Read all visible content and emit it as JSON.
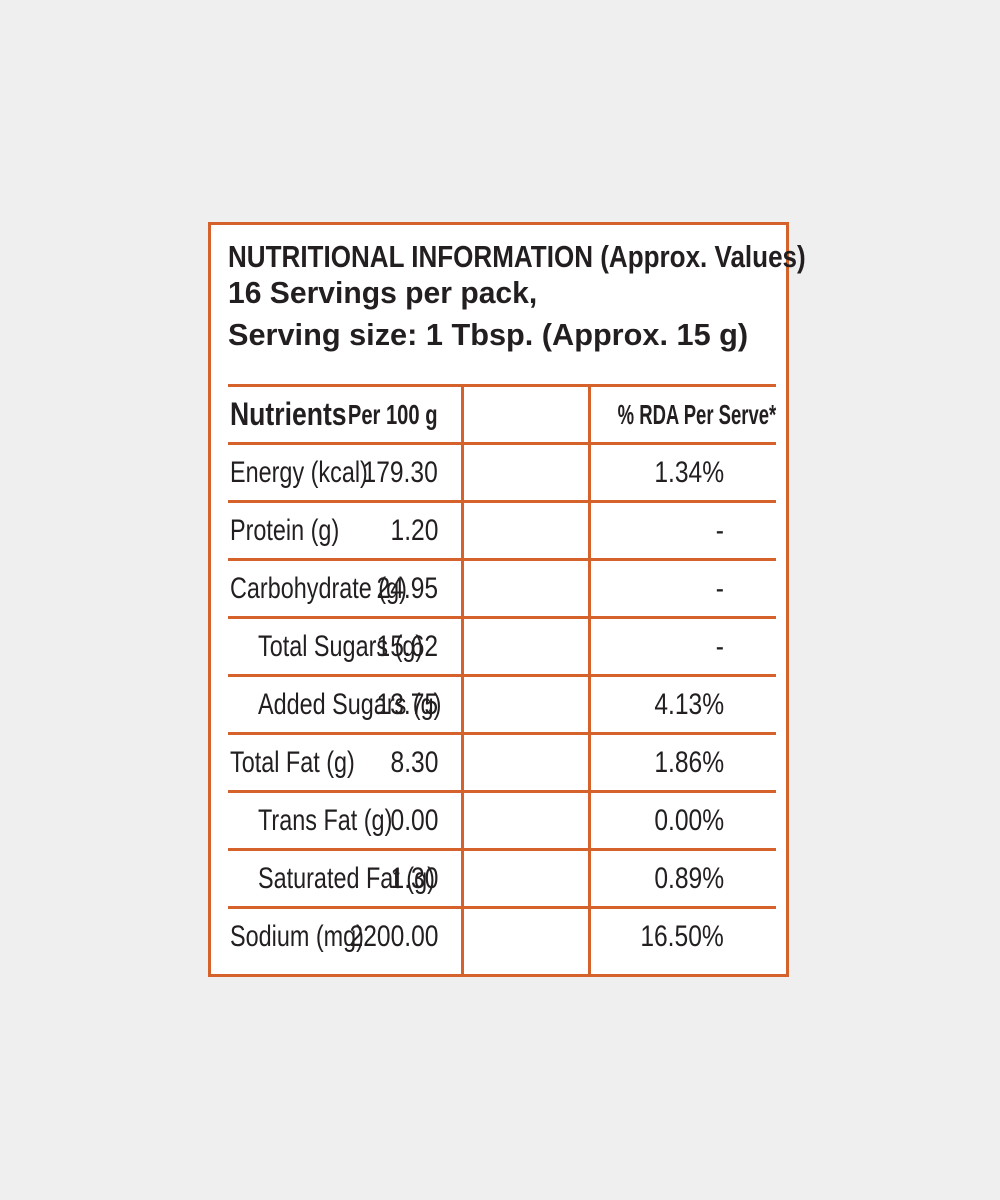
{
  "header": {
    "title": "NUTRITIONAL INFORMATION (Approx. Values)",
    "servings": "16 Servings per pack,",
    "serving_size": "Serving size: 1 Tbsp. (Approx. 15 g)"
  },
  "table": {
    "columns": [
      "Nutrients",
      "Per 100 g",
      "% RDA Per Serve*"
    ],
    "rows": [
      {
        "nutrient": "Energy (kcal)",
        "per_100g": "179.30",
        "rda": "1.34%"
      },
      {
        "nutrient": "Protein (g)",
        "per_100g": "1.20",
        "rda": "-"
      },
      {
        "nutrient": "Carbohydrate (g)",
        "per_100g": "24.95",
        "rda": "-"
      },
      {
        "nutrient": "Total Sugars (g)",
        "per_100g": "15.62",
        "rda": "-"
      },
      {
        "nutrient": "Added Sugars (g)",
        "per_100g": "13.75",
        "rda": "4.13%"
      },
      {
        "nutrient": "Total Fat (g)",
        "per_100g": "8.30",
        "rda": "1.86%"
      },
      {
        "nutrient": "Trans Fat (g)",
        "per_100g": "0.00",
        "rda": "0.00%"
      },
      {
        "nutrient": "Saturated Fat (g)",
        "per_100g": "1.30",
        "rda": "0.89%"
      },
      {
        "nutrient": "Sodium (mg)",
        "per_100g": "2200.00",
        "rda": "16.50%"
      }
    ]
  },
  "colors": {
    "border": "#d4622a",
    "text": "#231f20",
    "background": "#efefef",
    "label_background": "#ffffff"
  }
}
